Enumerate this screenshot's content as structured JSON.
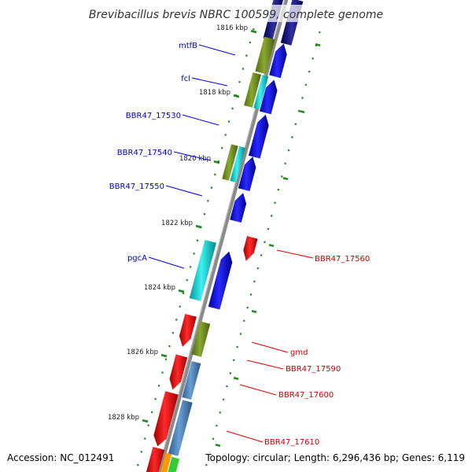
{
  "title": "Brevibacillus brevis NBRC 100599, complete genome",
  "accession": "Accession: NC_012491",
  "topology": "Topology: circular; Length: 6,296,436 bp; Genes: 6,119",
  "colors": {
    "strand_forward": "#0000EE",
    "strand_reverse": "#EE0000",
    "label_forward": "#0000CC",
    "label_reverse": "#CC0000",
    "cog_olive": "#6E8B1E",
    "cog_cyan": "#00CCCC",
    "cog_steel": "#4682B4",
    "tick": "#228B22",
    "backbone": "#808080"
  },
  "scale": {
    "unit": "kbp",
    "ticks": [
      {
        "label": "1816 kbp"
      },
      {
        "label": "1818 kbp"
      },
      {
        "label": "1820 kbp"
      },
      {
        "label": "1822 kbp"
      },
      {
        "label": "1824 kbp"
      },
      {
        "label": "1826 kbp"
      },
      {
        "label": "1828 kbp"
      }
    ]
  },
  "genes": {
    "forward": [
      {
        "name": "mtfB"
      },
      {
        "name": "fcl"
      },
      {
        "name": "BBR47_17530"
      },
      {
        "name": "BBR47_17540"
      },
      {
        "name": "BBR47_17550"
      },
      {
        "name": "pgcA"
      }
    ],
    "reverse": [
      {
        "name": "BBR47_17560"
      },
      {
        "name": "gmd"
      },
      {
        "name": "BBR47_17590"
      },
      {
        "name": "BBR47_17600"
      },
      {
        "name": "BBR47_17610"
      }
    ]
  }
}
